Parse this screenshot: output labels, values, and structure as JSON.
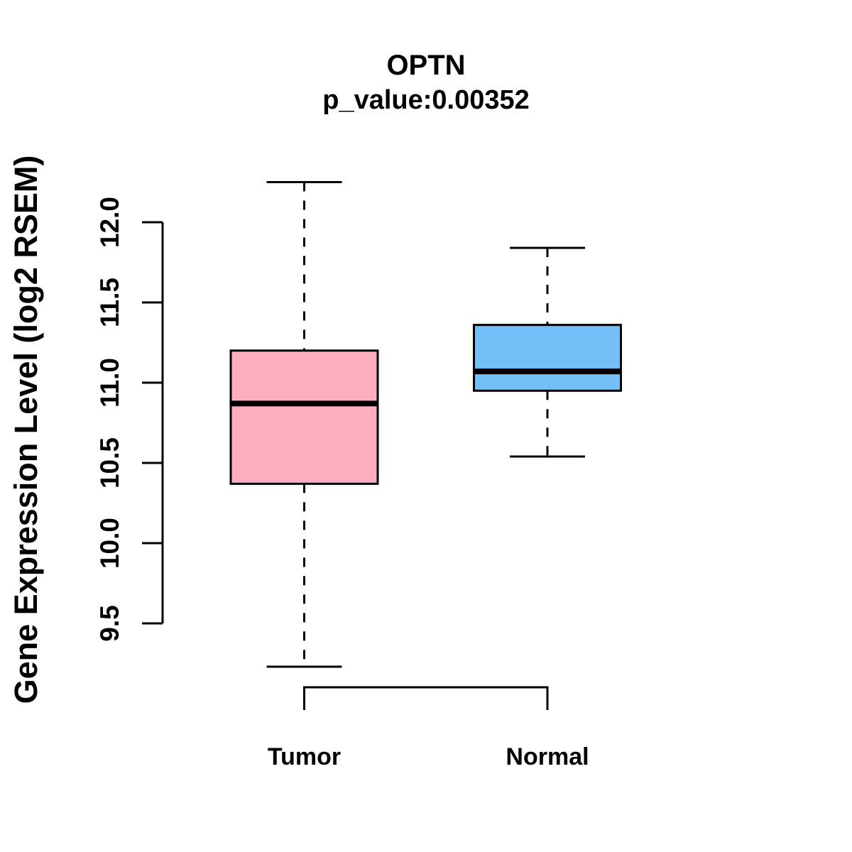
{
  "chart_data": {
    "type": "boxplot",
    "title": "OPTN",
    "subtitle": "p_value:0.00352",
    "ylabel": "Gene Expression Level (log2 RSEM)",
    "ylim": [
      9.5,
      12.0
    ],
    "ytick_labels": [
      "9.5",
      "10.0",
      "10.5",
      "11.0",
      "11.5",
      "12.0"
    ],
    "grid": "off",
    "groups": [
      {
        "label": "Tumor",
        "color": "#FDAEC1",
        "whisker_low": 9.23,
        "q1": 10.37,
        "median": 10.87,
        "q3": 11.2,
        "whisker_high": 12.25
      },
      {
        "label": "Normal",
        "color": "#74BFF5",
        "whisker_low": 10.54,
        "q1": 10.95,
        "median": 11.07,
        "q3": 11.36,
        "whisker_high": 11.84
      }
    ],
    "comparison_bracket": {
      "from": "Tumor",
      "to": "Normal"
    },
    "stroke_color": "#000000",
    "background_color": "#ffffff"
  }
}
